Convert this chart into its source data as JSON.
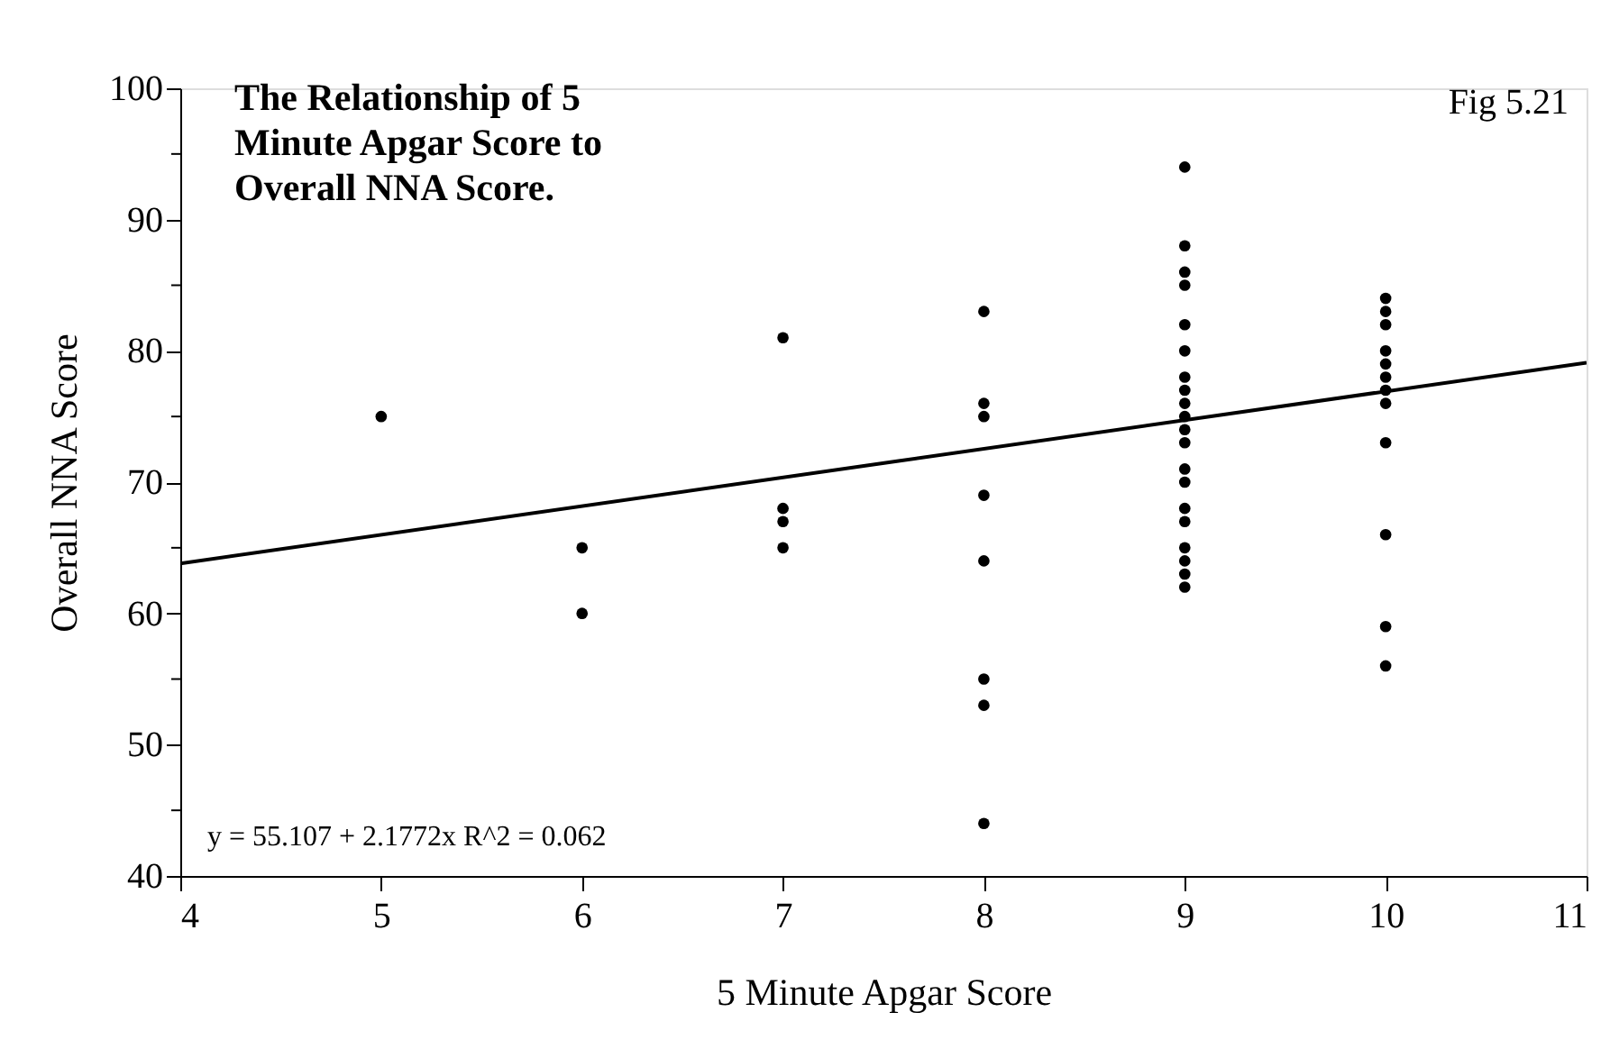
{
  "chart_data": {
    "type": "scatter",
    "title": "The Relationship of 5 Minute Apgar Score to Overall NNA Score.",
    "xlabel": "5 Minute Apgar Score",
    "ylabel": "Overall NNA Score",
    "annotations": [
      "Fig 5.21",
      "y = 55.107 + 2.1772x    R^2 = 0.062"
    ],
    "marker": "circle",
    "grid": false,
    "xlim": [
      4,
      11
    ],
    "xticks": [
      4,
      5,
      6,
      7,
      8,
      9,
      10,
      11
    ],
    "ylim": [
      40,
      100
    ],
    "yticks": [
      40,
      {
        "value": 45,
        "label": null
      },
      50,
      {
        "value": 55,
        "label": null
      },
      60,
      {
        "value": 65,
        "label": null
      },
      70,
      {
        "value": 75,
        "label": null
      },
      80,
      {
        "value": 85,
        "label": null
      },
      90,
      {
        "value": 95,
        "label": null
      },
      100
    ],
    "series": [
      {
        "color": "#000000",
        "x": [
          5,
          6,
          6,
          7,
          7,
          7,
          7,
          8,
          8,
          8,
          8,
          8,
          8,
          8,
          8,
          9,
          9,
          9,
          9,
          9,
          9,
          9,
          9,
          9,
          9,
          9,
          9,
          9,
          9,
          9,
          9,
          9,
          9,
          9,
          9,
          10,
          10,
          10,
          10,
          10,
          10,
          10,
          10,
          10,
          10,
          10,
          10
        ],
        "values": [
          75,
          65,
          60,
          81,
          68,
          67,
          65,
          83,
          76,
          75,
          69,
          64,
          55,
          53,
          44,
          94,
          88,
          86,
          85,
          82,
          80,
          78,
          77,
          76,
          75,
          74,
          73,
          71,
          70,
          68,
          67,
          65,
          64,
          63,
          62,
          84,
          83,
          82,
          80,
          79,
          78,
          77,
          76,
          73,
          66,
          59,
          56
        ]
      },
      {
        "type": "line",
        "color": "#000000",
        "line_style": "solid",
        "marker": "none",
        "x": [
          4,
          11
        ],
        "values": [
          63.8,
          79.1
        ]
      }
    ]
  }
}
